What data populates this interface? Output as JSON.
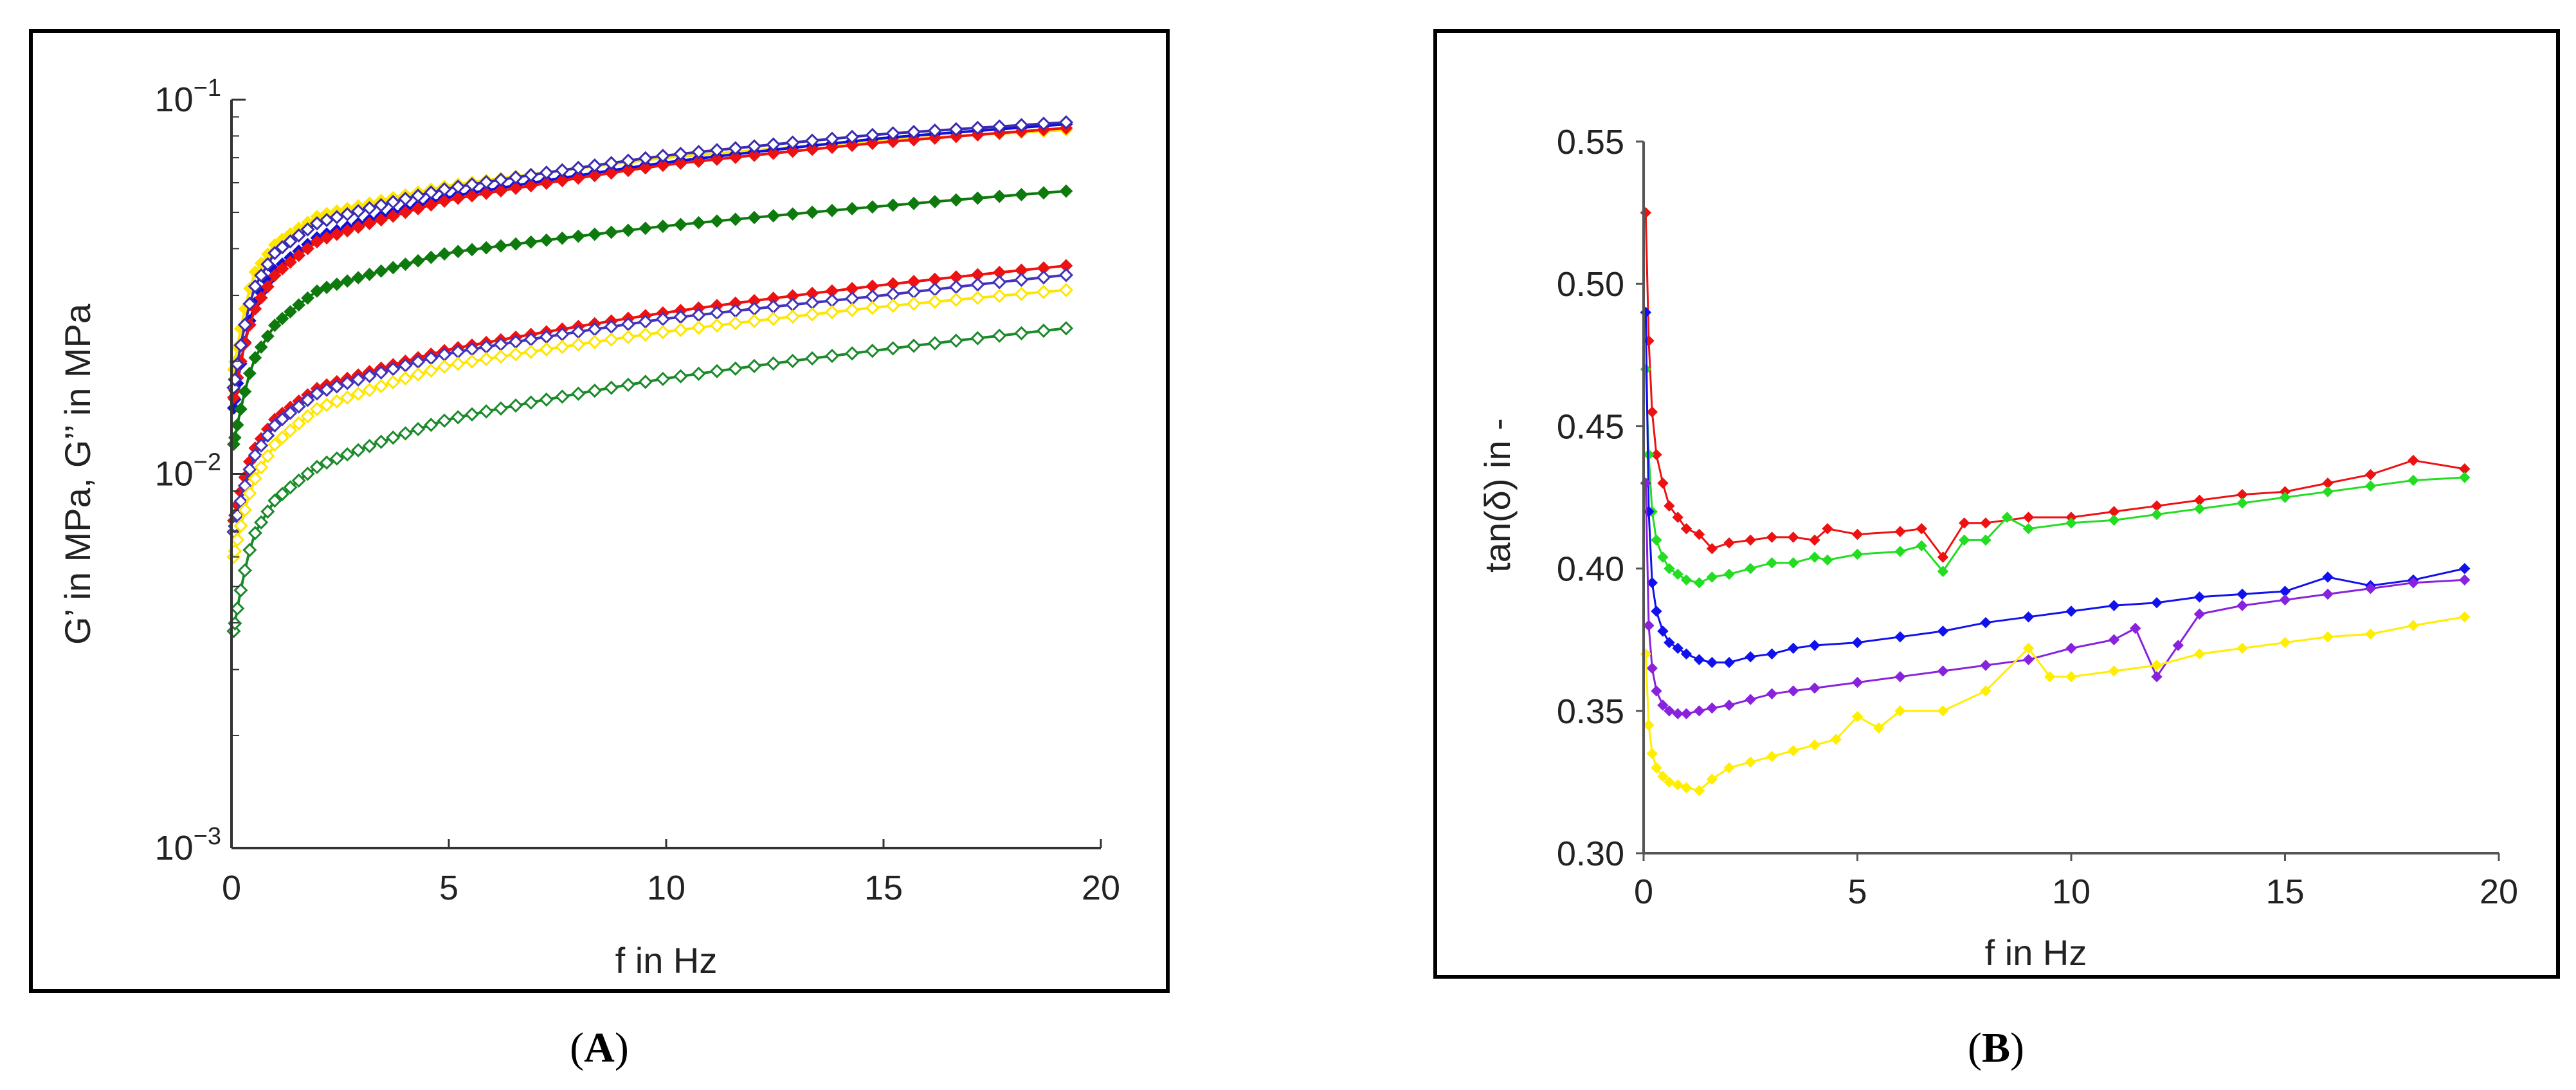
{
  "chart_data": [
    {
      "panel": "A",
      "type": "line",
      "yscale": "log",
      "xlabel": "f in Hz",
      "ylabel": "G’ in MPa, G’’ in MPa",
      "xlim": [
        0,
        20
      ],
      "ylim": [
        0.001,
        0.1
      ],
      "xticks": [
        0,
        5,
        10,
        15,
        20
      ],
      "xtick_labels": [
        "0",
        "5",
        "10",
        "15",
        "20"
      ],
      "yticks": [
        0.001,
        0.01,
        0.1
      ],
      "ytick_labels": [
        {
          "base": "10",
          "exp": "−3"
        },
        {
          "base": "10",
          "exp": "−2"
        },
        {
          "base": "10",
          "exp": "−1"
        }
      ],
      "grid": false,
      "marker_count": 60,
      "series": [
        {
          "name": "G' yellow",
          "color": "#ffe600",
          "marker": "filled",
          "x": [
            0.05,
            0.5,
            1,
            2,
            5,
            10,
            15,
            19.2
          ],
          "y": [
            0.019,
            0.034,
            0.041,
            0.049,
            0.059,
            0.07,
            0.078,
            0.083
          ]
        },
        {
          "name": "G' blue",
          "color": "#1010dd",
          "marker": "filled",
          "x": [
            0.05,
            0.5,
            1,
            2,
            5,
            10,
            15,
            19.2
          ],
          "y": [
            0.015,
            0.028,
            0.035,
            0.043,
            0.055,
            0.068,
            0.079,
            0.086
          ]
        },
        {
          "name": "G' red",
          "color": "#ee1111",
          "marker": "filled",
          "x": [
            0.05,
            0.5,
            1,
            2,
            5,
            10,
            15,
            19.2
          ],
          "y": [
            0.016,
            0.027,
            0.034,
            0.042,
            0.054,
            0.067,
            0.077,
            0.084
          ]
        },
        {
          "name": "G' purple",
          "color": "#3a2bb0",
          "marker": "open",
          "x": [
            0.05,
            0.5,
            1,
            2,
            5,
            10,
            15,
            19.2
          ],
          "y": [
            0.017,
            0.031,
            0.039,
            0.047,
            0.058,
            0.071,
            0.081,
            0.087
          ]
        },
        {
          "name": "G' green",
          "color": "#0e7a0e",
          "marker": "filled",
          "x": [
            0.05,
            0.5,
            1,
            2,
            5,
            10,
            15,
            19.2
          ],
          "y": [
            0.012,
            0.02,
            0.025,
            0.031,
            0.039,
            0.046,
            0.052,
            0.057
          ]
        },
        {
          "name": "G'' red",
          "color": "#ee1111",
          "marker": "filled",
          "x": [
            0.05,
            0.5,
            1,
            2,
            5,
            10,
            15,
            19.2
          ],
          "y": [
            0.0075,
            0.0115,
            0.014,
            0.017,
            0.0215,
            0.027,
            0.032,
            0.036
          ]
        },
        {
          "name": "G'' purple",
          "color": "#4433bb",
          "marker": "open",
          "x": [
            0.05,
            0.5,
            1,
            2,
            5,
            10,
            15,
            19.2
          ],
          "y": [
            0.007,
            0.011,
            0.0135,
            0.0165,
            0.021,
            0.026,
            0.03,
            0.034
          ]
        },
        {
          "name": "G'' yellow",
          "color": "#ffe600",
          "marker": "open",
          "x": [
            0.05,
            0.5,
            1,
            2,
            5,
            10,
            15,
            19.2
          ],
          "y": [
            0.006,
            0.0095,
            0.012,
            0.015,
            0.0195,
            0.024,
            0.028,
            0.031
          ]
        },
        {
          "name": "G'' green",
          "color": "#1a8a2a",
          "marker": "open",
          "x": [
            0.05,
            0.5,
            1,
            2,
            5,
            10,
            15,
            19.2
          ],
          "y": [
            0.0038,
            0.0068,
            0.0085,
            0.0105,
            0.014,
            0.018,
            0.0215,
            0.0245
          ]
        }
      ]
    },
    {
      "panel": "B",
      "type": "line",
      "xlabel": "f in Hz",
      "ylabel": "tan(δ) in -",
      "xlim": [
        0,
        20
      ],
      "ylim": [
        0.3,
        0.55
      ],
      "xticks": [
        0,
        5,
        10,
        15,
        20
      ],
      "xtick_labels": [
        "0",
        "5",
        "10",
        "15",
        "20"
      ],
      "yticks": [
        0.3,
        0.35,
        0.4,
        0.45,
        0.5,
        0.55
      ],
      "ytick_labels": [
        "0.30",
        "0.35",
        "0.40",
        "0.45",
        "0.50",
        "0.55"
      ],
      "grid": false,
      "series": [
        {
          "name": "red",
          "color": "#ee1111",
          "x": [
            0.05,
            0.12,
            0.2,
            0.3,
            0.45,
            0.6,
            0.8,
            1.0,
            1.3,
            1.6,
            2.0,
            2.5,
            3.0,
            3.5,
            4.0,
            4.3,
            5.0,
            6.0,
            6.5,
            7.0,
            7.5,
            8.0,
            9.0,
            10.0,
            11.0,
            12.0,
            13.0,
            14.0,
            15.0,
            16.0,
            17.0,
            18.0,
            19.2
          ],
          "y": [
            0.525,
            0.48,
            0.455,
            0.44,
            0.43,
            0.422,
            0.418,
            0.414,
            0.412,
            0.407,
            0.409,
            0.41,
            0.411,
            0.411,
            0.41,
            0.414,
            0.412,
            0.413,
            0.414,
            0.404,
            0.416,
            0.416,
            0.418,
            0.418,
            0.42,
            0.422,
            0.424,
            0.426,
            0.427,
            0.43,
            0.433,
            0.438,
            0.435
          ]
        },
        {
          "name": "green",
          "color": "#22dd22",
          "x": [
            0.05,
            0.12,
            0.2,
            0.3,
            0.45,
            0.6,
            0.8,
            1.0,
            1.3,
            1.6,
            2.0,
            2.5,
            3.0,
            3.5,
            4.0,
            4.3,
            5.0,
            6.0,
            6.5,
            7.0,
            7.5,
            8.0,
            8.5,
            9.0,
            10.0,
            11.0,
            12.0,
            13.0,
            14.0,
            15.0,
            16.0,
            17.0,
            18.0,
            19.2
          ],
          "y": [
            0.47,
            0.44,
            0.42,
            0.41,
            0.404,
            0.4,
            0.398,
            0.396,
            0.395,
            0.397,
            0.398,
            0.4,
            0.402,
            0.402,
            0.404,
            0.403,
            0.405,
            0.406,
            0.408,
            0.399,
            0.41,
            0.41,
            0.418,
            0.414,
            0.416,
            0.417,
            0.419,
            0.421,
            0.423,
            0.425,
            0.427,
            0.429,
            0.431,
            0.432
          ]
        },
        {
          "name": "blue",
          "color": "#1111ee",
          "x": [
            0.05,
            0.12,
            0.2,
            0.3,
            0.45,
            0.6,
            0.8,
            1.0,
            1.3,
            1.6,
            2.0,
            2.5,
            3.0,
            3.5,
            4.0,
            5.0,
            6.0,
            7.0,
            8.0,
            9.0,
            10.0,
            11.0,
            12.0,
            13.0,
            14.0,
            15.0,
            16.0,
            17.0,
            18.0,
            19.2
          ],
          "y": [
            0.49,
            0.42,
            0.395,
            0.385,
            0.378,
            0.374,
            0.372,
            0.37,
            0.368,
            0.367,
            0.367,
            0.369,
            0.37,
            0.372,
            0.373,
            0.374,
            0.376,
            0.378,
            0.381,
            0.383,
            0.385,
            0.387,
            0.388,
            0.39,
            0.391,
            0.392,
            0.397,
            0.394,
            0.396,
            0.4
          ]
        },
        {
          "name": "purple",
          "color": "#8822dd",
          "x": [
            0.05,
            0.12,
            0.2,
            0.3,
            0.45,
            0.6,
            0.8,
            1.0,
            1.3,
            1.6,
            2.0,
            2.5,
            3.0,
            3.5,
            4.0,
            5.0,
            6.0,
            7.0,
            8.0,
            9.0,
            10.0,
            11.0,
            11.5,
            12.0,
            12.5,
            13.0,
            14.0,
            15.0,
            16.0,
            17.0,
            18.0,
            19.2
          ],
          "y": [
            0.43,
            0.38,
            0.365,
            0.357,
            0.352,
            0.35,
            0.349,
            0.349,
            0.35,
            0.351,
            0.352,
            0.354,
            0.356,
            0.357,
            0.358,
            0.36,
            0.362,
            0.364,
            0.366,
            0.368,
            0.372,
            0.375,
            0.379,
            0.362,
            0.373,
            0.384,
            0.387,
            0.389,
            0.391,
            0.393,
            0.395,
            0.396
          ]
        },
        {
          "name": "yellow",
          "color": "#ffee00",
          "x": [
            0.05,
            0.12,
            0.2,
            0.3,
            0.45,
            0.6,
            0.8,
            1.0,
            1.3,
            1.6,
            2.0,
            2.5,
            3.0,
            3.5,
            4.0,
            4.5,
            5.0,
            5.5,
            6.0,
            7.0,
            8.0,
            9.0,
            9.5,
            10.0,
            11.0,
            12.0,
            13.0,
            14.0,
            15.0,
            16.0,
            17.0,
            18.0,
            19.2
          ],
          "y": [
            0.37,
            0.345,
            0.335,
            0.33,
            0.327,
            0.325,
            0.324,
            0.323,
            0.322,
            0.326,
            0.33,
            0.332,
            0.334,
            0.336,
            0.338,
            0.34,
            0.348,
            0.344,
            0.35,
            0.35,
            0.357,
            0.372,
            0.362,
            0.362,
            0.364,
            0.366,
            0.37,
            0.372,
            0.374,
            0.376,
            0.377,
            0.38,
            0.383
          ]
        }
      ]
    }
  ],
  "panel_labels": [
    {
      "open": "(",
      "letter": "A",
      "close": ")"
    },
    {
      "open": "(",
      "letter": "B",
      "close": ")"
    }
  ]
}
